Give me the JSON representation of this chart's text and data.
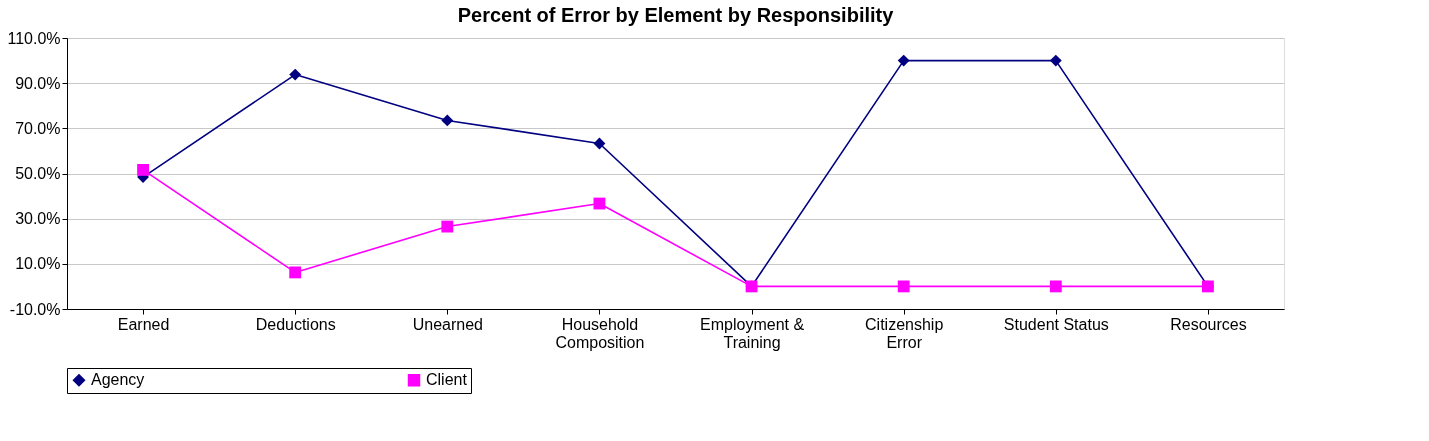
{
  "chart_data": {
    "type": "line",
    "title": "Percent of Error by Element by Responsibility",
    "categories": [
      "Earned",
      "Deductions",
      "Unearned",
      "Household Composition",
      "Employment & Training",
      "Citizenship Error",
      "Student Status",
      "Resources"
    ],
    "series": [
      {
        "name": "Agency",
        "color": "#000080",
        "marker": "diamond",
        "values": [
          48.4,
          93.8,
          73.5,
          63.3,
          0,
          100,
          100,
          0
        ]
      },
      {
        "name": "Client",
        "color": "#ff00ff",
        "marker": "square",
        "values": [
          51.6,
          6.2,
          26.5,
          36.7,
          0,
          0,
          0,
          0
        ]
      }
    ],
    "ylim": [
      -10,
      110
    ],
    "yticks": [
      {
        "value": -10,
        "label": "-10.0%"
      },
      {
        "value": 10,
        "label": "10.0%"
      },
      {
        "value": 30,
        "label": "30.0%"
      },
      {
        "value": 50,
        "label": "50.0%"
      },
      {
        "value": 70,
        "label": "70.0%"
      },
      {
        "value": 90,
        "label": "90.0%"
      },
      {
        "value": 110,
        "label": "110.0%"
      }
    ],
    "grid": "y",
    "legend": "bottom",
    "line_style": "solid"
  }
}
